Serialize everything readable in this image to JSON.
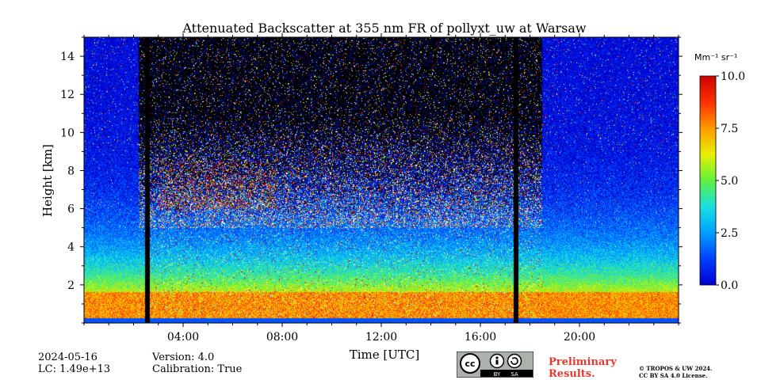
{
  "chart_data": {
    "type": "heatmap",
    "title": "Attenuated Backscatter at 355 nm FR of pollyxt_uw at Warsaw",
    "xlabel": "Time [UTC]",
    "ylabel": "Height [km]",
    "xlim": [
      0,
      24
    ],
    "ylim": [
      0,
      15
    ],
    "x_ticks": [
      4,
      8,
      12,
      16,
      20
    ],
    "x_tick_labels": [
      "04:00",
      "08:00",
      "12:00",
      "16:00",
      "20:00"
    ],
    "y_ticks": [
      2,
      4,
      6,
      8,
      10,
      12,
      14
    ],
    "y_tick_labels": [
      "2",
      "4",
      "6",
      "8",
      "10",
      "12",
      "14"
    ],
    "colorbar": {
      "label": "Mm⁻¹ sr⁻¹",
      "range": [
        0,
        10
      ],
      "ticks": [
        0,
        2.5,
        5,
        7.5,
        10
      ],
      "tick_labels": [
        "0.0",
        "2.5",
        "5.0",
        "7.5",
        "10.0"
      ],
      "colormap": "jet"
    },
    "data_gaps_utc": [
      [
        2.45,
        2.65
      ],
      [
        17.35,
        17.55
      ]
    ],
    "cloud_layer": {
      "start_utc": 3.0,
      "end_utc": 7.8,
      "height_km_min": 6.0,
      "height_km_max": 8.5
    },
    "boundary_layer_top_km": 1.6,
    "noise_zone_utc": [
      2.2,
      18.5
    ]
  },
  "footer": {
    "date": "2024-05-16",
    "lc": "LC: 1.49e+13",
    "version": "Version: 4.0",
    "calibration": "Calibration: True",
    "license_badge": {
      "cc": "cc",
      "by": "BY",
      "sa": "SA"
    },
    "preliminary_line1": "Preliminary",
    "preliminary_line2": "Results.",
    "copyright_line1": "© TROPOS & UW 2024.",
    "copyright_line2": "CC BY SA 4.0 License."
  }
}
